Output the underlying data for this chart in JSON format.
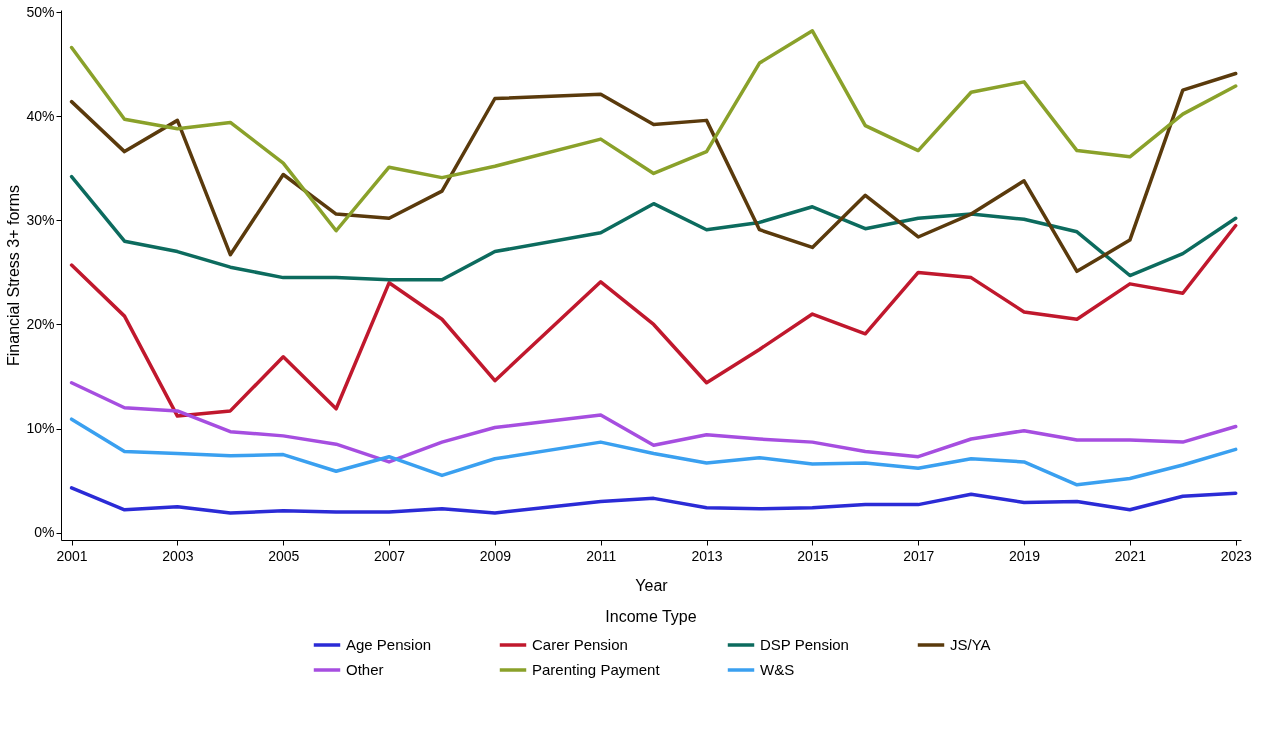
{
  "chart_data": {
    "type": "line",
    "xlabel": "Year",
    "ylabel": "Financial Stress 3+ forms",
    "legend_title": "Income Type",
    "legend": "bottom",
    "grid": false,
    "marker": "none",
    "line_style": "solid",
    "x": [
      2001,
      2002,
      2003,
      2004,
      2005,
      2006,
      2007,
      2008,
      2009,
      2011,
      2012,
      2013,
      2014,
      2015,
      2016,
      2017,
      2018,
      2019,
      2020,
      2021,
      2022,
      2023
    ],
    "xlim": [
      2000.8,
      2023.1
    ],
    "xticks": [
      2001,
      2003,
      2005,
      2007,
      2009,
      2011,
      2013,
      2015,
      2017,
      2019,
      2021,
      2023
    ],
    "ylim": [
      -0.7,
      50.2
    ],
    "yticks": [
      {
        "value": 0,
        "label": "0%"
      },
      {
        "value": 10,
        "label": "10%"
      },
      {
        "value": 20,
        "label": "20%"
      },
      {
        "value": 30,
        "label": "30%"
      },
      {
        "value": 40,
        "label": "40%"
      },
      {
        "value": 50,
        "label": "50%"
      }
    ],
    "series": [
      {
        "name": "Age Pension",
        "color": "#2b2bd6",
        "values": [
          4.3,
          2.2,
          2.5,
          1.9,
          2.1,
          2.0,
          2.0,
          2.3,
          1.9,
          3.0,
          3.3,
          2.4,
          2.3,
          2.4,
          2.7,
          2.7,
          3.7,
          2.9,
          3.0,
          2.2,
          3.5,
          3.8
        ]
      },
      {
        "name": "Carer Pension",
        "color": "#c0182d",
        "values": [
          25.7,
          20.8,
          11.2,
          11.7,
          16.9,
          11.9,
          24.0,
          20.5,
          14.6,
          24.1,
          20.0,
          14.4,
          17.6,
          21.0,
          19.1,
          25.0,
          24.5,
          21.2,
          20.5,
          23.9,
          23.0,
          29.5
        ]
      },
      {
        "name": "DSP Pension",
        "color": "#0c6b5e",
        "values": [
          34.2,
          28.0,
          27.0,
          25.5,
          24.5,
          24.5,
          24.3,
          24.3,
          27.0,
          28.8,
          31.6,
          29.1,
          29.8,
          31.3,
          29.2,
          30.2,
          30.6,
          30.1,
          28.9,
          24.7,
          26.8,
          30.2
        ]
      },
      {
        "name": "JS/YA",
        "color": "#5a3a0c",
        "values": [
          41.4,
          36.6,
          39.6,
          26.7,
          34.4,
          30.6,
          30.2,
          32.8,
          41.7,
          42.1,
          39.2,
          39.6,
          29.1,
          27.4,
          32.4,
          28.4,
          30.6,
          33.8,
          25.1,
          28.1,
          42.5,
          44.1
        ]
      },
      {
        "name": "Other",
        "color": "#a64ee0",
        "values": [
          14.4,
          12.0,
          11.7,
          9.7,
          9.3,
          8.5,
          6.8,
          8.7,
          10.1,
          11.3,
          8.4,
          9.4,
          9.0,
          8.7,
          7.8,
          7.3,
          9.0,
          9.8,
          8.9,
          8.9,
          8.7,
          10.2
        ]
      },
      {
        "name": "Parenting Payment",
        "color": "#8aa12a",
        "values": [
          46.6,
          39.7,
          38.8,
          39.4,
          35.5,
          29.0,
          35.1,
          34.1,
          35.2,
          37.8,
          34.5,
          36.6,
          45.1,
          48.2,
          39.1,
          36.7,
          42.3,
          43.3,
          36.7,
          36.1,
          40.2,
          42.9
        ]
      },
      {
        "name": "W&S",
        "color": "#3aa0f0",
        "values": [
          10.9,
          7.8,
          7.6,
          7.4,
          7.5,
          5.9,
          7.3,
          5.5,
          7.1,
          8.7,
          7.6,
          6.7,
          7.2,
          6.6,
          6.7,
          6.2,
          7.1,
          6.8,
          4.6,
          5.2,
          6.5,
          8.0
        ]
      }
    ]
  }
}
